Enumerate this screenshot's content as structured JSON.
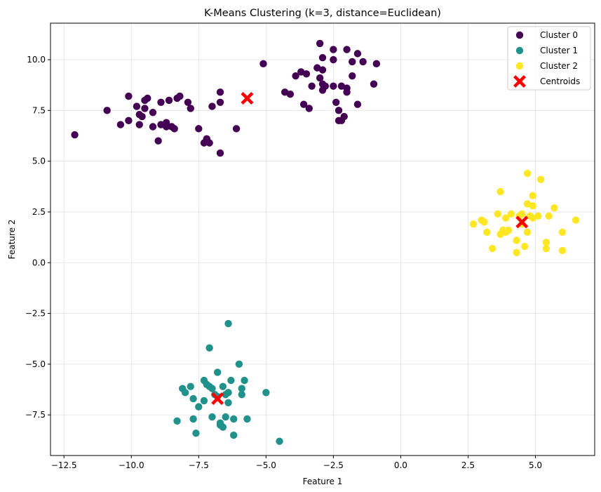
{
  "chart_data": {
    "type": "scatter",
    "title": "K-Means Clustering (k=3, distance=Euclidean)",
    "xlabel": "Feature 1",
    "ylabel": "Feature 2",
    "xlim": [
      -13.0,
      7.2
    ],
    "ylim": [
      -9.5,
      11.8
    ],
    "xticks": [
      -12.5,
      -10.0,
      -7.5,
      -5.0,
      -2.5,
      0.0,
      2.5,
      5.0
    ],
    "xtick_labels": [
      "−12.5",
      "−10.0",
      "−7.5",
      "−5.0",
      "−2.5",
      "0.0",
      "2.5",
      "5.0"
    ],
    "yticks": [
      -7.5,
      -5.0,
      -2.5,
      0.0,
      2.5,
      5.0,
      7.5,
      10.0
    ],
    "ytick_labels": [
      "−7.5",
      "−5.0",
      "−2.5",
      "0.0",
      "2.5",
      "5.0",
      "7.5",
      "10.0"
    ],
    "grid": true,
    "legend_position": "top-right",
    "series": [
      {
        "name": "Cluster 0",
        "color": "#440154",
        "marker": "circle",
        "points": [
          [
            -12.1,
            6.3
          ],
          [
            -10.9,
            7.5
          ],
          [
            -10.4,
            6.8
          ],
          [
            -10.1,
            8.2
          ],
          [
            -10.1,
            7.0
          ],
          [
            -9.8,
            7.7
          ],
          [
            -9.7,
            7.3
          ],
          [
            -9.7,
            6.8
          ],
          [
            -9.6,
            7.2
          ],
          [
            -9.5,
            7.6
          ],
          [
            -9.5,
            8.0
          ],
          [
            -9.4,
            8.1
          ],
          [
            -9.2,
            7.4
          ],
          [
            -9.2,
            6.7
          ],
          [
            -9.0,
            6.0
          ],
          [
            -8.9,
            7.9
          ],
          [
            -8.9,
            6.8
          ],
          [
            -8.7,
            6.7
          ],
          [
            -8.7,
            6.9
          ],
          [
            -8.6,
            8.0
          ],
          [
            -8.5,
            6.7
          ],
          [
            -8.4,
            6.6
          ],
          [
            -8.3,
            8.1
          ],
          [
            -8.2,
            8.2
          ],
          [
            -7.9,
            7.9
          ],
          [
            -7.8,
            7.6
          ],
          [
            -7.5,
            6.6
          ],
          [
            -7.3,
            5.9
          ],
          [
            -7.2,
            6.1
          ],
          [
            -7.1,
            5.9
          ],
          [
            -7.0,
            7.7
          ],
          [
            -6.7,
            8.4
          ],
          [
            -6.7,
            7.9
          ],
          [
            -6.7,
            5.4
          ],
          [
            -6.1,
            6.6
          ],
          [
            -5.1,
            9.8
          ],
          [
            -4.3,
            8.4
          ],
          [
            -4.1,
            8.3
          ],
          [
            -3.9,
            9.2
          ],
          [
            -3.7,
            9.4
          ],
          [
            -3.6,
            7.8
          ],
          [
            -3.5,
            9.3
          ],
          [
            -3.4,
            7.6
          ],
          [
            -3.3,
            8.7
          ],
          [
            -3.1,
            9.6
          ],
          [
            -3.0,
            10.8
          ],
          [
            -3.0,
            9.1
          ],
          [
            -2.9,
            10.1
          ],
          [
            -2.9,
            9.5
          ],
          [
            -2.9,
            8.8
          ],
          [
            -2.9,
            8.5
          ],
          [
            -2.8,
            8.7
          ],
          [
            -2.5,
            10.5
          ],
          [
            -2.5,
            10.0
          ],
          [
            -2.5,
            8.7
          ],
          [
            -2.4,
            7.9
          ],
          [
            -2.3,
            7.5
          ],
          [
            -2.3,
            7.0
          ],
          [
            -2.2,
            8.7
          ],
          [
            -2.2,
            7.0
          ],
          [
            -2.1,
            7.2
          ],
          [
            -2.0,
            10.5
          ],
          [
            -2.0,
            8.6
          ],
          [
            -2.0,
            8.4
          ],
          [
            -1.8,
            9.9
          ],
          [
            -1.8,
            9.2
          ],
          [
            -1.6,
            10.3
          ],
          [
            -1.6,
            7.8
          ],
          [
            -1.4,
            9.9
          ],
          [
            -1.0,
            8.8
          ],
          [
            -0.9,
            9.8
          ]
        ]
      },
      {
        "name": "Cluster 1",
        "color": "#21918c",
        "marker": "circle",
        "points": [
          [
            -8.3,
            -7.8
          ],
          [
            -8.1,
            -6.2
          ],
          [
            -8.0,
            -6.4
          ],
          [
            -7.8,
            -6.1
          ],
          [
            -7.7,
            -6.7
          ],
          [
            -7.7,
            -7.7
          ],
          [
            -7.6,
            -8.4
          ],
          [
            -7.5,
            -7.1
          ],
          [
            -7.3,
            -6.8
          ],
          [
            -7.3,
            -5.8
          ],
          [
            -7.2,
            -6.0
          ],
          [
            -7.1,
            -6.1
          ],
          [
            -7.1,
            -4.2
          ],
          [
            -7.0,
            -6.2
          ],
          [
            -7.0,
            -7.6
          ],
          [
            -6.9,
            -6.5
          ],
          [
            -6.8,
            -6.6
          ],
          [
            -6.8,
            -5.4
          ],
          [
            -6.7,
            -7.9
          ],
          [
            -6.7,
            -8.0
          ],
          [
            -6.6,
            -8.1
          ],
          [
            -6.6,
            -6.1
          ],
          [
            -6.5,
            -7.6
          ],
          [
            -6.5,
            -6.5
          ],
          [
            -6.4,
            -6.4
          ],
          [
            -6.4,
            -6.9
          ],
          [
            -6.4,
            -3.0
          ],
          [
            -6.3,
            -5.8
          ],
          [
            -6.2,
            -7.7
          ],
          [
            -6.2,
            -8.5
          ],
          [
            -6.0,
            -5.0
          ],
          [
            -5.9,
            -6.2
          ],
          [
            -5.9,
            -6.5
          ],
          [
            -5.8,
            -5.8
          ],
          [
            -5.7,
            -7.7
          ],
          [
            -5.0,
            -6.4
          ],
          [
            -4.5,
            -8.8
          ]
        ]
      },
      {
        "name": "Cluster 2",
        "color": "#fde725",
        "marker": "circle",
        "points": [
          [
            2.7,
            1.9
          ],
          [
            3.0,
            2.1
          ],
          [
            3.1,
            2.0
          ],
          [
            3.2,
            1.5
          ],
          [
            3.4,
            0.7
          ],
          [
            3.6,
            2.4
          ],
          [
            3.7,
            3.5
          ],
          [
            3.7,
            1.4
          ],
          [
            3.8,
            1.6
          ],
          [
            3.9,
            2.2
          ],
          [
            3.9,
            1.5
          ],
          [
            4.0,
            1.6
          ],
          [
            4.1,
            2.4
          ],
          [
            4.3,
            1.1
          ],
          [
            4.3,
            0.5
          ],
          [
            4.4,
            2.3
          ],
          [
            4.5,
            2.4
          ],
          [
            4.5,
            1.9
          ],
          [
            4.6,
            0.8
          ],
          [
            4.7,
            4.4
          ],
          [
            4.7,
            2.9
          ],
          [
            4.7,
            1.5
          ],
          [
            4.8,
            2.3
          ],
          [
            4.9,
            3.3
          ],
          [
            4.9,
            2.8
          ],
          [
            4.9,
            2.2
          ],
          [
            5.1,
            2.3
          ],
          [
            5.2,
            4.1
          ],
          [
            5.4,
            1.0
          ],
          [
            5.4,
            0.7
          ],
          [
            5.5,
            2.3
          ],
          [
            5.7,
            2.7
          ],
          [
            6.0,
            1.5
          ],
          [
            6.0,
            0.6
          ],
          [
            6.5,
            2.1
          ]
        ]
      }
    ],
    "centroids": {
      "name": "Centroids",
      "color": "#ff0000",
      "marker": "X",
      "points": [
        [
          -5.7,
          8.1
        ],
        [
          -6.8,
          -6.7
        ],
        [
          4.5,
          2.0
        ]
      ]
    }
  }
}
